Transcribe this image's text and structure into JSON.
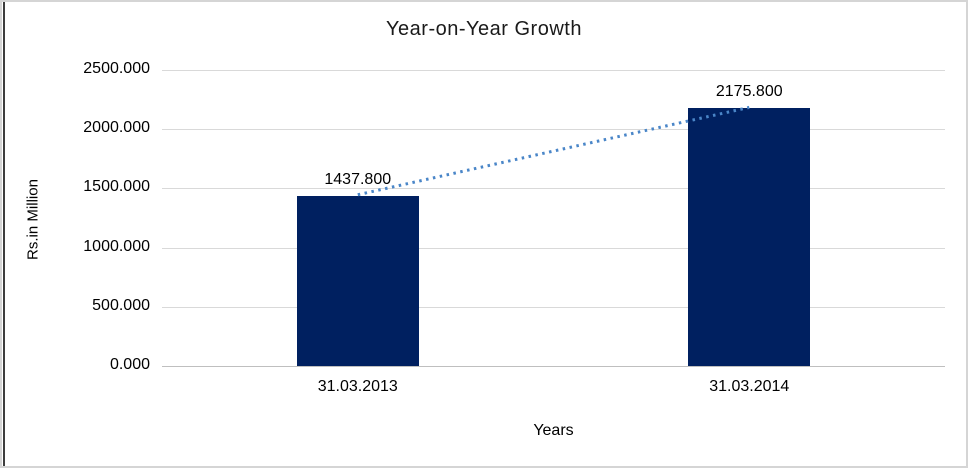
{
  "chart_data": {
    "type": "bar",
    "title": "Year-on-Year Growth",
    "categories": [
      "31.03.2013",
      "31.03.2014"
    ],
    "values": [
      1437.8,
      2175.8
    ],
    "data_labels": [
      "1437.800",
      "2175.800"
    ],
    "xlabel": "Years",
    "ylabel": "Rs.in Million",
    "ylim": [
      0,
      2500
    ],
    "ytick_interval": 500,
    "ytick_labels": [
      "0.000",
      "500.000",
      "1000.000",
      "1500.000",
      "2000.000",
      "2500.000"
    ],
    "grid": true,
    "legend": "none",
    "trendline": {
      "type": "linear",
      "style": "dotted"
    },
    "colors": {
      "bar": "#002060",
      "trendline": "#4a86c8",
      "gridline": "#d9d9d9",
      "axis_line": "#bfbfbf",
      "text": "#000000",
      "frame_border": "#d5d5d5",
      "left_accent": "#3d3d3d"
    }
  }
}
